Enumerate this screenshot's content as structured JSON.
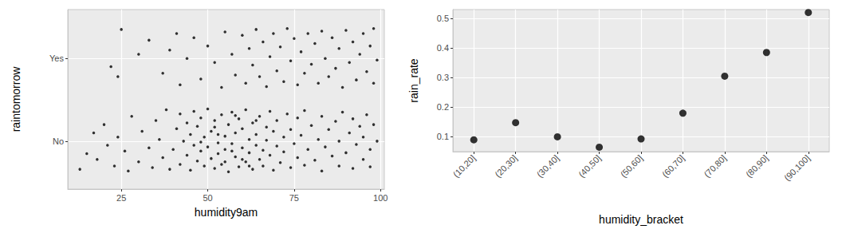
{
  "chart_data": [
    {
      "type": "scatter",
      "x_label": "humidity9am",
      "y_label": "raintomorrow",
      "xlim": [
        9.5,
        101.1
      ],
      "xticks": [
        25,
        50,
        75,
        100
      ],
      "ylim": [
        0.42,
        2.59
      ],
      "yticks": [
        {
          "value": 1,
          "label": "No"
        },
        {
          "value": 2,
          "label": "Yes"
        }
      ],
      "grid": true,
      "color": "#000000",
      "points": [
        [
          13,
          0.66
        ],
        [
          15,
          0.85
        ],
        [
          17,
          1.1
        ],
        [
          18,
          0.78
        ],
        [
          20,
          1.2
        ],
        [
          21,
          0.95
        ],
        [
          23,
          0.7
        ],
        [
          24,
          1.05
        ],
        [
          26,
          0.88
        ],
        [
          27,
          0.64
        ],
        [
          28,
          1.3
        ],
        [
          30,
          0.75
        ],
        [
          31,
          1.12
        ],
        [
          33,
          0.92
        ],
        [
          34,
          0.68
        ],
        [
          35,
          1.25
        ],
        [
          36,
          1.02
        ],
        [
          37,
          0.8
        ],
        [
          38,
          1.38
        ],
        [
          39,
          0.66
        ],
        [
          40,
          0.9
        ],
        [
          41,
          1.15
        ],
        [
          42,
          0.72
        ],
        [
          42,
          1.33
        ],
        [
          43,
          1.0
        ],
        [
          44,
          0.83
        ],
        [
          44,
          1.22
        ],
        [
          45,
          0.65
        ],
        [
          45,
          1.08
        ],
        [
          46,
          0.95
        ],
        [
          46,
          1.36
        ],
        [
          47,
          0.76
        ],
        [
          47,
          1.18
        ],
        [
          48,
          0.88
        ],
        [
          48,
          1.28
        ],
        [
          49,
          0.7
        ],
        [
          49,
          1.05
        ],
        [
          50,
          0.93
        ],
        [
          50,
          1.39
        ],
        [
          51,
          0.79
        ],
        [
          51,
          1.12
        ],
        [
          52,
          0.67
        ],
        [
          52,
          1.25
        ],
        [
          53,
          0.98
        ],
        [
          53,
          0.85
        ],
        [
          54,
          1.32
        ],
        [
          54,
          0.72
        ],
        [
          55,
          1.06
        ],
        [
          55,
          0.9
        ],
        [
          56,
          1.2
        ],
        [
          56,
          0.63
        ],
        [
          57,
          0.97
        ],
        [
          57,
          1.35
        ],
        [
          58,
          0.81
        ],
        [
          58,
          1.1
        ],
        [
          59,
          0.69
        ],
        [
          59,
          1.27
        ],
        [
          60,
          0.92
        ],
        [
          60,
          1.15
        ],
        [
          61,
          0.75
        ],
        [
          61,
          1.38
        ],
        [
          62,
          1.02
        ],
        [
          62,
          0.86
        ],
        [
          63,
          0.66
        ],
        [
          63,
          1.22
        ],
        [
          64,
          0.95
        ],
        [
          64,
          1.08
        ],
        [
          65,
          0.78
        ],
        [
          65,
          1.3
        ],
        [
          66,
          0.89
        ],
        [
          66,
          0.7
        ],
        [
          67,
          1.17
        ],
        [
          67,
          1.01
        ],
        [
          68,
          0.83
        ],
        [
          68,
          1.36
        ],
        [
          69,
          0.65
        ],
        [
          69,
          1.12
        ],
        [
          70,
          0.94
        ],
        [
          70,
          1.25
        ],
        [
          71,
          0.74
        ],
        [
          72,
          1.05
        ],
        [
          72,
          0.87
        ],
        [
          73,
          1.33
        ],
        [
          74,
          0.68
        ],
        [
          74,
          1.14
        ],
        [
          75,
          0.97
        ],
        [
          76,
          0.8
        ],
        [
          76,
          1.28
        ],
        [
          77,
          1.07
        ],
        [
          78,
          0.71
        ],
        [
          78,
          1.37
        ],
        [
          79,
          0.9
        ],
        [
          80,
          1.19
        ],
        [
          81,
          0.77
        ],
        [
          82,
          1.02
        ],
        [
          83,
          0.64
        ],
        [
          83,
          1.3
        ],
        [
          84,
          0.93
        ],
        [
          85,
          1.14
        ],
        [
          86,
          0.82
        ],
        [
          87,
          1.24
        ],
        [
          88,
          0.7
        ],
        [
          88,
          1.0
        ],
        [
          89,
          1.35
        ],
        [
          90,
          0.86
        ],
        [
          91,
          1.1
        ],
        [
          92,
          0.67
        ],
        [
          92,
          1.27
        ],
        [
          93,
          0.96
        ],
        [
          94,
          1.18
        ],
        [
          95,
          0.78
        ],
        [
          95,
          1.05
        ],
        [
          96,
          1.32
        ],
        [
          97,
          0.9
        ],
        [
          97,
          0.69
        ],
        [
          98,
          1.2
        ],
        [
          99,
          1.0
        ],
        [
          48,
          0.99
        ],
        [
          52,
          1.17
        ],
        [
          55,
          0.75
        ],
        [
          58,
          1.31
        ],
        [
          62,
          0.7
        ],
        [
          53,
          1.08
        ],
        [
          57,
          0.88
        ],
        [
          60,
          0.78
        ],
        [
          64,
          1.25
        ],
        [
          22,
          1.9
        ],
        [
          24,
          1.78
        ],
        [
          25,
          2.35
        ],
        [
          30,
          2.05
        ],
        [
          33,
          2.22
        ],
        [
          37,
          1.82
        ],
        [
          39,
          2.1
        ],
        [
          41,
          2.3
        ],
        [
          42,
          1.68
        ],
        [
          44,
          2.0
        ],
        [
          46,
          2.25
        ],
        [
          48,
          1.75
        ],
        [
          50,
          2.15
        ],
        [
          52,
          1.95
        ],
        [
          54,
          1.65
        ],
        [
          55,
          2.32
        ],
        [
          57,
          2.05
        ],
        [
          58,
          1.8
        ],
        [
          60,
          2.28
        ],
        [
          61,
          1.7
        ],
        [
          62,
          2.12
        ],
        [
          63,
          1.92
        ],
        [
          64,
          2.35
        ],
        [
          65,
          1.78
        ],
        [
          66,
          2.2
        ],
        [
          67,
          1.66
        ],
        [
          68,
          2.02
        ],
        [
          69,
          2.3
        ],
        [
          70,
          1.85
        ],
        [
          71,
          2.14
        ],
        [
          72,
          1.72
        ],
        [
          73,
          2.36
        ],
        [
          74,
          1.97
        ],
        [
          75,
          2.24
        ],
        [
          76,
          1.68
        ],
        [
          77,
          2.08
        ],
        [
          78,
          1.82
        ],
        [
          79,
          2.3
        ],
        [
          80,
          1.93
        ],
        [
          81,
          2.18
        ],
        [
          82,
          1.7
        ],
        [
          83,
          2.33
        ],
        [
          84,
          2.0
        ],
        [
          85,
          1.78
        ],
        [
          86,
          2.25
        ],
        [
          87,
          1.88
        ],
        [
          88,
          2.12
        ],
        [
          89,
          1.65
        ],
        [
          90,
          2.34
        ],
        [
          91,
          1.95
        ],
        [
          92,
          2.2
        ],
        [
          93,
          1.74
        ],
        [
          94,
          2.05
        ],
        [
          95,
          2.3
        ],
        [
          96,
          1.84
        ],
        [
          97,
          2.15
        ],
        [
          98,
          1.7
        ],
        [
          98,
          2.36
        ],
        [
          99,
          1.98
        ]
      ]
    },
    {
      "type": "scatter",
      "x_label": "humidity_bracket",
      "y_label": "rain_rate",
      "categories": [
        "(10,20]",
        "(20,30]",
        "(30,40]",
        "(40,50]",
        "(50,60]",
        "(60,70]",
        "(70,80]",
        "(80,90]",
        "(90,100]"
      ],
      "values": [
        0.09,
        0.148,
        0.1,
        0.065,
        0.093,
        0.18,
        0.305,
        0.385,
        0.52
      ],
      "ylim": [
        0.05,
        0.53
      ],
      "yticks": [
        0.1,
        0.2,
        0.3,
        0.4,
        0.5
      ],
      "grid": true,
      "color": "#000000"
    }
  ]
}
